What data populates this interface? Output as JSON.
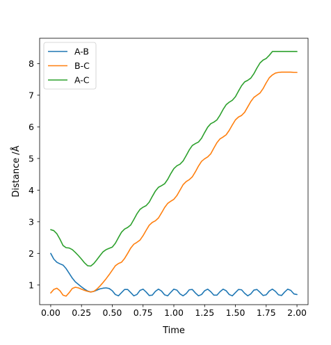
{
  "chart_data": {
    "type": "line",
    "title": "",
    "xlabel": "Time",
    "ylabel": "Distance /Å",
    "xlim": [
      -0.09,
      2.09
    ],
    "ylim": [
      0.38,
      8.8
    ],
    "x_ticks": [
      0.0,
      0.25,
      0.5,
      0.75,
      1.0,
      1.25,
      1.5,
      1.75,
      2.0
    ],
    "x_tick_labels": [
      "0.00",
      "0.25",
      "0.50",
      "0.75",
      "1.00",
      "1.25",
      "1.50",
      "1.75",
      "2.00"
    ],
    "y_ticks": [
      1,
      2,
      3,
      4,
      5,
      6,
      7,
      8
    ],
    "y_tick_labels": [
      "1",
      "2",
      "3",
      "4",
      "5",
      "6",
      "7",
      "8"
    ],
    "grid": false,
    "legend_position": "top-left",
    "series": [
      {
        "name": "A-B",
        "color": "#1f77b4",
        "x": [
          0.0,
          0.025,
          0.05,
          0.075,
          0.1,
          0.125,
          0.15,
          0.175,
          0.2,
          0.225,
          0.25,
          0.275,
          0.3,
          0.325,
          0.35,
          0.375,
          0.4,
          0.425,
          0.45,
          0.475,
          0.5,
          0.525,
          0.55,
          0.575,
          0.6,
          0.625,
          0.65,
          0.675,
          0.7,
          0.725,
          0.75,
          0.775,
          0.8,
          0.825,
          0.85,
          0.875,
          0.9,
          0.925,
          0.95,
          0.975,
          1.0,
          1.025,
          1.05,
          1.075,
          1.1,
          1.125,
          1.15,
          1.175,
          1.2,
          1.225,
          1.25,
          1.275,
          1.3,
          1.325,
          1.35,
          1.375,
          1.4,
          1.425,
          1.45,
          1.475,
          1.5,
          1.525,
          1.55,
          1.575,
          1.6,
          1.625,
          1.65,
          1.675,
          1.7,
          1.725,
          1.75,
          1.775,
          1.8,
          1.825,
          1.85,
          1.875,
          1.9,
          1.925,
          1.95,
          1.975,
          2.0
        ],
        "y": [
          2.0,
          1.82,
          1.72,
          1.67,
          1.63,
          1.52,
          1.37,
          1.22,
          1.1,
          1.02,
          0.94,
          0.87,
          0.81,
          0.78,
          0.8,
          0.84,
          0.88,
          0.9,
          0.91,
          0.89,
          0.82,
          0.7,
          0.66,
          0.76,
          0.86,
          0.86,
          0.76,
          0.66,
          0.7,
          0.83,
          0.87,
          0.78,
          0.67,
          0.68,
          0.8,
          0.87,
          0.81,
          0.69,
          0.66,
          0.77,
          0.87,
          0.84,
          0.72,
          0.66,
          0.73,
          0.85,
          0.86,
          0.75,
          0.66,
          0.7,
          0.82,
          0.87,
          0.79,
          0.68,
          0.68,
          0.79,
          0.87,
          0.82,
          0.7,
          0.66,
          0.76,
          0.86,
          0.85,
          0.74,
          0.66,
          0.72,
          0.84,
          0.86,
          0.77,
          0.67,
          0.69,
          0.81,
          0.87,
          0.8,
          0.69,
          0.67,
          0.78,
          0.87,
          0.83,
          0.72,
          0.7
        ]
      },
      {
        "name": "B-C",
        "color": "#ff7f0e",
        "x": [
          0.0,
          0.025,
          0.05,
          0.075,
          0.1,
          0.125,
          0.15,
          0.175,
          0.2,
          0.225,
          0.25,
          0.275,
          0.3,
          0.325,
          0.35,
          0.375,
          0.4,
          0.425,
          0.45,
          0.475,
          0.5,
          0.525,
          0.55,
          0.575,
          0.6,
          0.625,
          0.65,
          0.675,
          0.7,
          0.725,
          0.75,
          0.775,
          0.8,
          0.825,
          0.85,
          0.875,
          0.9,
          0.925,
          0.95,
          0.975,
          1.0,
          1.025,
          1.05,
          1.075,
          1.1,
          1.125,
          1.15,
          1.175,
          1.2,
          1.225,
          1.25,
          1.275,
          1.3,
          1.325,
          1.35,
          1.375,
          1.4,
          1.425,
          1.45,
          1.475,
          1.5,
          1.525,
          1.55,
          1.575,
          1.6,
          1.625,
          1.65,
          1.675,
          1.7,
          1.725,
          1.75,
          1.775,
          1.8,
          1.825,
          1.85,
          1.875,
          1.9,
          1.925,
          1.95,
          1.975,
          2.0
        ],
        "y": [
          0.75,
          0.86,
          0.9,
          0.82,
          0.68,
          0.65,
          0.76,
          0.89,
          0.93,
          0.91,
          0.87,
          0.83,
          0.8,
          0.78,
          0.8,
          0.87,
          0.97,
          1.08,
          1.2,
          1.33,
          1.47,
          1.61,
          1.68,
          1.72,
          1.84,
          2.0,
          2.17,
          2.29,
          2.35,
          2.42,
          2.56,
          2.73,
          2.89,
          2.98,
          3.03,
          3.12,
          3.28,
          3.45,
          3.58,
          3.65,
          3.71,
          3.83,
          4.0,
          4.17,
          4.27,
          4.33,
          4.42,
          4.58,
          4.76,
          4.91,
          4.99,
          5.05,
          5.15,
          5.33,
          5.5,
          5.62,
          5.68,
          5.75,
          5.89,
          6.06,
          6.22,
          6.31,
          6.36,
          6.46,
          6.63,
          6.8,
          6.93,
          7.0,
          7.07,
          7.21,
          7.39,
          7.55,
          7.64,
          7.7,
          7.72,
          7.73,
          7.73,
          7.73,
          7.73,
          7.72,
          7.72
        ]
      },
      {
        "name": "A-C",
        "color": "#2ca02c",
        "x": [
          0.0,
          0.025,
          0.05,
          0.075,
          0.1,
          0.125,
          0.15,
          0.175,
          0.2,
          0.225,
          0.25,
          0.275,
          0.3,
          0.325,
          0.35,
          0.375,
          0.4,
          0.425,
          0.45,
          0.475,
          0.5,
          0.525,
          0.55,
          0.575,
          0.6,
          0.625,
          0.65,
          0.675,
          0.7,
          0.725,
          0.75,
          0.775,
          0.8,
          0.825,
          0.85,
          0.875,
          0.9,
          0.925,
          0.95,
          0.975,
          1.0,
          1.025,
          1.05,
          1.075,
          1.1,
          1.125,
          1.15,
          1.175,
          1.2,
          1.225,
          1.25,
          1.275,
          1.3,
          1.325,
          1.35,
          1.375,
          1.4,
          1.425,
          1.45,
          1.475,
          1.5,
          1.525,
          1.55,
          1.575,
          1.6,
          1.625,
          1.65,
          1.675,
          1.7,
          1.725,
          1.75,
          1.775,
          1.8,
          1.825,
          1.85,
          1.875,
          1.9,
          1.925,
          1.95,
          1.975,
          2.0
        ],
        "y": [
          2.75,
          2.72,
          2.62,
          2.45,
          2.25,
          2.18,
          2.17,
          2.12,
          2.03,
          1.93,
          1.82,
          1.7,
          1.61,
          1.6,
          1.68,
          1.8,
          1.93,
          2.05,
          2.12,
          2.16,
          2.2,
          2.32,
          2.5,
          2.67,
          2.77,
          2.82,
          2.9,
          3.07,
          3.25,
          3.39,
          3.46,
          3.51,
          3.62,
          3.8,
          3.97,
          4.09,
          4.14,
          4.2,
          4.34,
          4.52,
          4.68,
          4.77,
          4.82,
          4.92,
          5.09,
          5.27,
          5.41,
          5.47,
          5.52,
          5.64,
          5.82,
          5.99,
          6.1,
          6.15,
          6.22,
          6.37,
          6.55,
          6.7,
          6.78,
          6.84,
          6.95,
          7.13,
          7.3,
          7.42,
          7.47,
          7.54,
          7.68,
          7.86,
          8.02,
          8.11,
          8.16,
          8.26,
          8.38,
          8.38,
          8.38,
          8.38,
          8.38,
          8.38,
          8.38,
          8.38,
          8.38
        ]
      }
    ]
  }
}
